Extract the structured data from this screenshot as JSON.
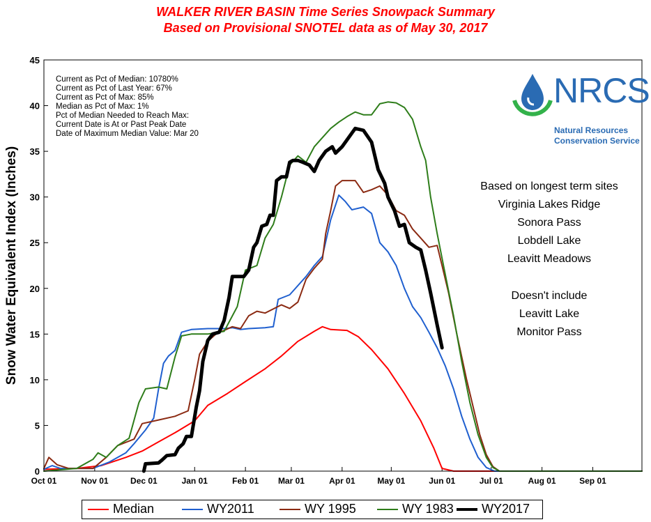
{
  "title_line1": "WALKER RIVER BASIN Time Series Snowpack Summary",
  "title_line2": "Based on Provisional SNOTEL data as of May 30, 2017",
  "stats": [
    "Current as Pct of Median:  10780%",
    "Current as Pct of Last Year: 67%",
    "Current as Pct of Max: 85%",
    "Median as Pct of Max: 1%",
    "Pct of Median Needed to Reach Max:",
    "Current Date is At or Past Peak Date",
    "Date of Maximum  Median Value: Mar 20"
  ],
  "notes": [
    "Based on longest term sites",
    "Virginia Lakes Ridge",
    "Sonora Pass",
    "Lobdell Lake",
    "Leavitt Meadows",
    "",
    "Doesn't include",
    "Leavitt Lake",
    "Monitor  Pass"
  ],
  "logo": {
    "text": "NRCS",
    "sub1": "Natural Resources",
    "sub2": "Conservation Service",
    "color_blue": "#2a6bb3",
    "color_green": "#33b24a"
  },
  "chart_data": {
    "type": "line",
    "ylabel": "Snow Water Equivalent Index (Inches)",
    "xlabel": "",
    "ylim": [
      0,
      45
    ],
    "yticks": [
      "0",
      "5",
      "10",
      "15",
      "20",
      "25",
      "30",
      "35",
      "40",
      "45"
    ],
    "x_unit": "days since Oct 01",
    "xlim": [
      0,
      365
    ],
    "xticks": [
      {
        "label": "Oct 01",
        "x": 0
      },
      {
        "label": "Nov 01",
        "x": 31
      },
      {
        "label": "Dec 01",
        "x": 61
      },
      {
        "label": "Jan 01",
        "x": 92
      },
      {
        "label": "Feb 01",
        "x": 123
      },
      {
        "label": "Mar 01",
        "x": 151
      },
      {
        "label": "Apr 01",
        "x": 182
      },
      {
        "label": "May 01",
        "x": 212
      },
      {
        "label": "Jun 01",
        "x": 243
      },
      {
        "label": "Jul 01",
        "x": 273
      },
      {
        "label": "Aug 01",
        "x": 304
      },
      {
        "label": "Sep 01",
        "x": 335
      }
    ],
    "series": [
      {
        "name": "Median",
        "color": "#ff0000",
        "width": 2,
        "points": [
          [
            0,
            0.2
          ],
          [
            20,
            0.3
          ],
          [
            35,
            0.6
          ],
          [
            50,
            1.5
          ],
          [
            60,
            2.2
          ],
          [
            70,
            3.2
          ],
          [
            80,
            4.2
          ],
          [
            92,
            5.5
          ],
          [
            100,
            7.2
          ],
          [
            112,
            8.5
          ],
          [
            123,
            9.8
          ],
          [
            135,
            11.2
          ],
          [
            145,
            12.6
          ],
          [
            155,
            14.2
          ],
          [
            165,
            15.3
          ],
          [
            170,
            15.8
          ],
          [
            175,
            15.5
          ],
          [
            185,
            15.4
          ],
          [
            192,
            14.7
          ],
          [
            200,
            13.3
          ],
          [
            210,
            11.2
          ],
          [
            220,
            8.5
          ],
          [
            230,
            5.5
          ],
          [
            238,
            2.5
          ],
          [
            243,
            0.3
          ],
          [
            250,
            0
          ],
          [
            365,
            0
          ]
        ]
      },
      {
        "name": "WY2011",
        "color": "#1f5fcf",
        "width": 2,
        "points": [
          [
            0,
            0.2
          ],
          [
            5,
            0.6
          ],
          [
            10,
            0.3
          ],
          [
            30,
            0.3
          ],
          [
            40,
            1.0
          ],
          [
            50,
            2.0
          ],
          [
            55,
            3.0
          ],
          [
            62,
            4.5
          ],
          [
            67,
            5.8
          ],
          [
            70,
            9.0
          ],
          [
            73,
            11.8
          ],
          [
            76,
            12.6
          ],
          [
            80,
            13.2
          ],
          [
            84,
            15.2
          ],
          [
            90,
            15.5
          ],
          [
            100,
            15.6
          ],
          [
            110,
            15.6
          ],
          [
            115,
            15.7
          ],
          [
            120,
            15.5
          ],
          [
            125,
            15.6
          ],
          [
            135,
            15.7
          ],
          [
            140,
            15.8
          ],
          [
            143,
            18.8
          ],
          [
            150,
            19.3
          ],
          [
            160,
            21.3
          ],
          [
            165,
            22.5
          ],
          [
            170,
            23.5
          ],
          [
            175,
            27.5
          ],
          [
            180,
            30.2
          ],
          [
            184,
            29.5
          ],
          [
            188,
            28.6
          ],
          [
            195,
            28.9
          ],
          [
            200,
            28.2
          ],
          [
            205,
            25.0
          ],
          [
            210,
            24.0
          ],
          [
            215,
            22.5
          ],
          [
            220,
            20.0
          ],
          [
            225,
            18.0
          ],
          [
            230,
            16.8
          ],
          [
            235,
            15.2
          ],
          [
            240,
            13.5
          ],
          [
            245,
            11.5
          ],
          [
            250,
            9.0
          ],
          [
            255,
            6.0
          ],
          [
            260,
            3.5
          ],
          [
            265,
            1.5
          ],
          [
            270,
            0.4
          ],
          [
            275,
            0
          ],
          [
            365,
            0
          ]
        ]
      },
      {
        "name": "WY 1995",
        "color": "#8b2a12",
        "width": 2,
        "points": [
          [
            0,
            0.3
          ],
          [
            3,
            1.5
          ],
          [
            8,
            0.7
          ],
          [
            15,
            0.3
          ],
          [
            30,
            0.3
          ],
          [
            38,
            1.5
          ],
          [
            45,
            2.8
          ],
          [
            55,
            3.5
          ],
          [
            60,
            5.2
          ],
          [
            70,
            5.6
          ],
          [
            80,
            6.0
          ],
          [
            88,
            6.6
          ],
          [
            92,
            10.0
          ],
          [
            95,
            12.8
          ],
          [
            100,
            14.2
          ],
          [
            105,
            15.0
          ],
          [
            110,
            15.4
          ],
          [
            115,
            15.8
          ],
          [
            120,
            15.6
          ],
          [
            125,
            17.0
          ],
          [
            130,
            17.5
          ],
          [
            135,
            17.3
          ],
          [
            145,
            18.2
          ],
          [
            150,
            17.8
          ],
          [
            155,
            18.5
          ],
          [
            160,
            21.0
          ],
          [
            165,
            22.2
          ],
          [
            170,
            23.2
          ],
          [
            172,
            26.0
          ],
          [
            175,
            28.5
          ],
          [
            178,
            31.2
          ],
          [
            182,
            31.8
          ],
          [
            190,
            31.8
          ],
          [
            195,
            30.5
          ],
          [
            200,
            30.8
          ],
          [
            205,
            31.2
          ],
          [
            210,
            30.2
          ],
          [
            215,
            28.5
          ],
          [
            220,
            28.0
          ],
          [
            225,
            26.5
          ],
          [
            230,
            25.5
          ],
          [
            235,
            24.5
          ],
          [
            240,
            24.7
          ],
          [
            243,
            22.5
          ],
          [
            247,
            19.5
          ],
          [
            252,
            15.0
          ],
          [
            258,
            10.0
          ],
          [
            262,
            7.0
          ],
          [
            266,
            4.0
          ],
          [
            270,
            1.8
          ],
          [
            274,
            0.5
          ],
          [
            278,
            0
          ],
          [
            365,
            0
          ]
        ]
      },
      {
        "name": "WY 1983",
        "color": "#2e7d1a",
        "width": 2,
        "points": [
          [
            0,
            0
          ],
          [
            20,
            0.3
          ],
          [
            30,
            1.3
          ],
          [
            33,
            2.0
          ],
          [
            38,
            1.5
          ],
          [
            45,
            2.8
          ],
          [
            52,
            3.6
          ],
          [
            58,
            7.5
          ],
          [
            62,
            9.0
          ],
          [
            70,
            9.2
          ],
          [
            75,
            9.0
          ],
          [
            80,
            12.5
          ],
          [
            84,
            14.8
          ],
          [
            90,
            15.0
          ],
          [
            100,
            15.0
          ],
          [
            110,
            15.3
          ],
          [
            118,
            18.0
          ],
          [
            123,
            22.0
          ],
          [
            130,
            22.5
          ],
          [
            135,
            25.5
          ],
          [
            140,
            27.0
          ],
          [
            145,
            30.0
          ],
          [
            150,
            33.5
          ],
          [
            155,
            34.5
          ],
          [
            160,
            33.8
          ],
          [
            165,
            35.5
          ],
          [
            170,
            36.5
          ],
          [
            175,
            37.5
          ],
          [
            180,
            38.2
          ],
          [
            185,
            38.8
          ],
          [
            190,
            39.3
          ],
          [
            195,
            39.0
          ],
          [
            200,
            39.0
          ],
          [
            205,
            40.2
          ],
          [
            210,
            40.4
          ],
          [
            215,
            40.3
          ],
          [
            220,
            39.8
          ],
          [
            225,
            38.5
          ],
          [
            230,
            35.5
          ],
          [
            233,
            34.0
          ],
          [
            236,
            30.0
          ],
          [
            240,
            26.0
          ],
          [
            245,
            21.5
          ],
          [
            250,
            17.0
          ],
          [
            255,
            12.0
          ],
          [
            260,
            7.5
          ],
          [
            265,
            4.0
          ],
          [
            270,
            1.5
          ],
          [
            274,
            0.4
          ],
          [
            278,
            0
          ],
          [
            365,
            0
          ]
        ]
      },
      {
        "name": "WY 2017",
        "color": "#000000",
        "width": 5,
        "points": [
          [
            61,
            0
          ],
          [
            62,
            0.8
          ],
          [
            70,
            0.9
          ],
          [
            72,
            1.2
          ],
          [
            75,
            1.7
          ],
          [
            80,
            1.8
          ],
          [
            82,
            2.5
          ],
          [
            85,
            3.0
          ],
          [
            87,
            3.8
          ],
          [
            90,
            3.8
          ],
          [
            93,
            7.0
          ],
          [
            95,
            8.8
          ],
          [
            97,
            12.0
          ],
          [
            100,
            14.3
          ],
          [
            103,
            15.0
          ],
          [
            107,
            15.2
          ],
          [
            110,
            16.5
          ],
          [
            113,
            19.0
          ],
          [
            115,
            21.3
          ],
          [
            122,
            21.3
          ],
          [
            125,
            22.0
          ],
          [
            128,
            24.5
          ],
          [
            130,
            25.0
          ],
          [
            133,
            26.8
          ],
          [
            136,
            27.0
          ],
          [
            138,
            28.0
          ],
          [
            140,
            28.0
          ],
          [
            142,
            31.8
          ],
          [
            145,
            32.2
          ],
          [
            148,
            32.2
          ],
          [
            150,
            33.8
          ],
          [
            152,
            34.0
          ],
          [
            155,
            34.0
          ],
          [
            158,
            33.8
          ],
          [
            162,
            33.5
          ],
          [
            165,
            32.8
          ],
          [
            168,
            34.0
          ],
          [
            172,
            35.0
          ],
          [
            176,
            35.5
          ],
          [
            178,
            34.8
          ],
          [
            182,
            35.5
          ],
          [
            186,
            36.5
          ],
          [
            190,
            37.5
          ],
          [
            195,
            37.3
          ],
          [
            200,
            36.0
          ],
          [
            204,
            33.0
          ],
          [
            208,
            31.5
          ],
          [
            210,
            30.0
          ],
          [
            214,
            28.5
          ],
          [
            217,
            26.8
          ],
          [
            220,
            27.0
          ],
          [
            223,
            25.0
          ],
          [
            227,
            24.5
          ],
          [
            230,
            24.2
          ],
          [
            233,
            22.0
          ],
          [
            236,
            19.5
          ],
          [
            240,
            16.0
          ],
          [
            243,
            13.5
          ]
        ]
      }
    ],
    "legend_labels": [
      "Median",
      "WY2011",
      "WY 1995",
      "WY 1983",
      "WY2017"
    ],
    "legend_colors": [
      "#ff0000",
      "#1f5fcf",
      "#8b2a12",
      "#2e7d1a",
      "#000000"
    ]
  }
}
